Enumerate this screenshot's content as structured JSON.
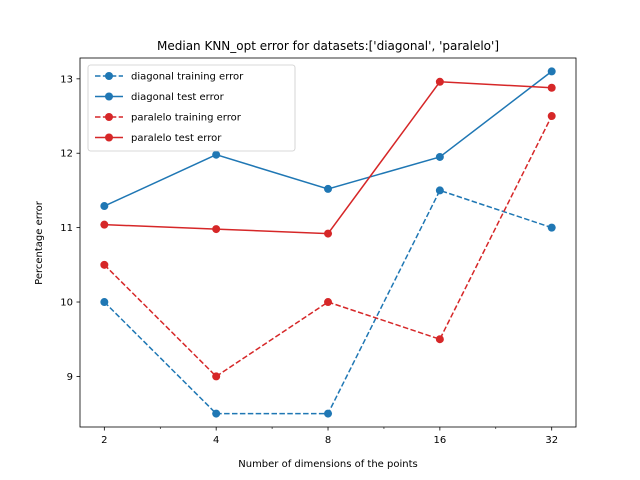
{
  "chart_data": {
    "type": "line",
    "title": "Median KNN_opt error for datasets:['diagonal', 'paralelo']",
    "xlabel": "Number of dimensions of the points",
    "ylabel": "Percentage error",
    "x_scale": "log2",
    "x": [
      2,
      4,
      8,
      16,
      32
    ],
    "x_tick_labels": [
      "2",
      "4",
      "8",
      "16",
      "32"
    ],
    "y_ticks": [
      9,
      10,
      11,
      12,
      13
    ],
    "y_tick_labels": [
      "9",
      "10",
      "11",
      "12",
      "13"
    ],
    "xlim": [
      1.72,
      37.2
    ],
    "ylim": [
      8.32,
      13.28
    ],
    "grid": false,
    "legend_position": "top-left",
    "series": [
      {
        "name": "diagonal training error",
        "color": "#1f77b4",
        "linestyle": "dashed",
        "marker": "circle",
        "values": [
          10.0,
          8.5,
          8.5,
          11.5,
          11.0
        ]
      },
      {
        "name": "diagonal test error",
        "color": "#1f77b4",
        "linestyle": "solid",
        "marker": "circle",
        "values": [
          11.29,
          11.98,
          11.52,
          11.95,
          13.1
        ]
      },
      {
        "name": "paralelo training error",
        "color": "#d62728",
        "linestyle": "dashed",
        "marker": "circle",
        "values": [
          10.5,
          9.0,
          10.0,
          9.5,
          12.5
        ]
      },
      {
        "name": "paralelo test error",
        "color": "#d62728",
        "linestyle": "solid",
        "marker": "circle",
        "values": [
          11.04,
          10.98,
          10.92,
          12.96,
          12.88
        ]
      }
    ]
  }
}
